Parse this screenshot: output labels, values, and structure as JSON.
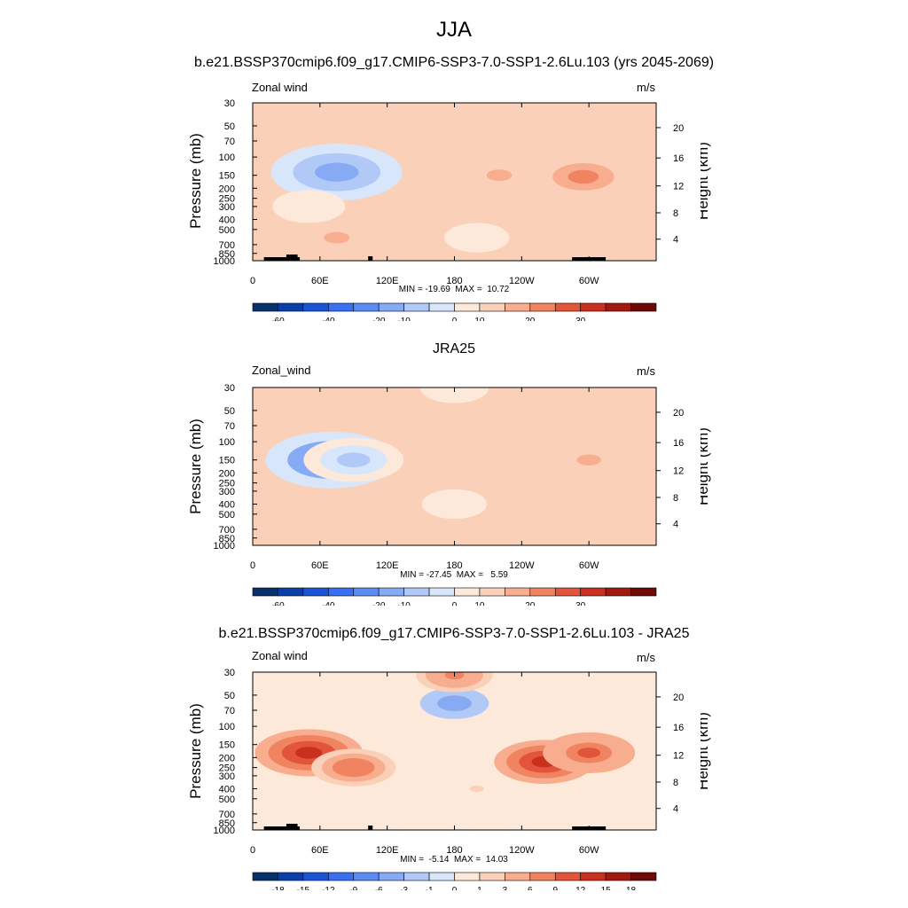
{
  "figure": {
    "title": "JJA"
  },
  "chart_data": [
    {
      "type": "heatmap",
      "title": "b.e21.BSSP370cmip6.f09_g17.CMIP6-SSP3-7.0-SSP1-2.6Lu.103 (yrs 2045-2069)",
      "variable": "Zonal wind",
      "units": "m/s",
      "ylabel": "Pressure (mb)",
      "ylabel_right": "Height (km)",
      "x_ticks": [
        "0",
        "60E",
        "120E",
        "180",
        "120W",
        "60W"
      ],
      "y_ticks": [
        "30",
        "50",
        "70",
        "100",
        "150",
        "200",
        "250",
        "300",
        "400",
        "500",
        "700",
        "850",
        "1000"
      ],
      "y_ticks_right": [
        "20",
        "16",
        "12",
        "8",
        "4"
      ],
      "min": -19.69,
      "max": 10.72,
      "min_max_text": "MIN = -19.69  MAX =  10.72",
      "colorbar_labels": [
        "-60",
        "-40",
        "-20",
        "-10",
        "0",
        "10",
        "20",
        "30"
      ],
      "features": [
        {
          "lon": 75,
          "p": 140,
          "value": -20
        },
        {
          "lon": 50,
          "p": 300,
          "value": -5
        },
        {
          "lon": 220,
          "p": 150,
          "value": 6
        },
        {
          "lon": 295,
          "p": 155,
          "value": 10
        },
        {
          "lon": 75,
          "p": 600,
          "value": 6
        },
        {
          "lon": 200,
          "p": 600,
          "value": -3
        }
      ]
    },
    {
      "type": "heatmap",
      "title": "JRA25",
      "variable": "Zonal_wind",
      "units": "m/s",
      "ylabel": "Pressure (mb)",
      "ylabel_right": "Height (km)",
      "x_ticks": [
        "0",
        "60E",
        "120E",
        "180",
        "120W",
        "60W"
      ],
      "y_ticks": [
        "30",
        "50",
        "70",
        "100",
        "150",
        "200",
        "250",
        "300",
        "400",
        "500",
        "700",
        "850",
        "1000"
      ],
      "y_ticks_right": [
        "20",
        "16",
        "12",
        "8",
        "4"
      ],
      "min": -27.45,
      "max": 5.59,
      "min_max_text": "MIN = -27.45  MAX =   5.59",
      "colorbar_labels": [
        "-60",
        "-40",
        "-20",
        "-10",
        "0",
        "10",
        "20",
        "30"
      ],
      "features": [
        {
          "lon": 70,
          "p": 150,
          "value": -27
        },
        {
          "lon": 90,
          "p": 150,
          "value": -12
        },
        {
          "lon": 220,
          "p": 90,
          "value": 4
        },
        {
          "lon": 300,
          "p": 150,
          "value": 5
        },
        {
          "lon": 60,
          "p": 500,
          "value": 3
        },
        {
          "lon": 180,
          "p": 400,
          "value": -3
        },
        {
          "lon": 180,
          "p": 30,
          "value": -4
        }
      ]
    },
    {
      "type": "heatmap",
      "title": "b.e21.BSSP370cmip6.f09_g17.CMIP6-SSP3-7.0-SSP1-2.6Lu.103 - JRA25",
      "variable": "Zonal wind",
      "units": "m/s",
      "ylabel": "Pressure (mb)",
      "ylabel_right": "Height (km)",
      "x_ticks": [
        "0",
        "60E",
        "120E",
        "180",
        "120W",
        "60W"
      ],
      "y_ticks": [
        "30",
        "50",
        "70",
        "100",
        "150",
        "200",
        "250",
        "300",
        "400",
        "500",
        "700",
        "850",
        "1000"
      ],
      "y_ticks_right": [
        "20",
        "16",
        "12",
        "8",
        "4"
      ],
      "min": -5.14,
      "max": 14.03,
      "min_max_text": "MIN =  -5.14  MAX =  14.03",
      "colorbar_labels": [
        "-18",
        "-15",
        "-12",
        "-9",
        "-6",
        "-3",
        "-1",
        "0",
        "1",
        "3",
        "6",
        "9",
        "12",
        "15",
        "18"
      ],
      "features": [
        {
          "lon": 50,
          "p": 180,
          "value": 14
        },
        {
          "lon": 90,
          "p": 250,
          "value": 8
        },
        {
          "lon": 260,
          "p": 220,
          "value": 12
        },
        {
          "lon": 300,
          "p": 180,
          "value": 10
        },
        {
          "lon": 180,
          "p": 60,
          "value": -4
        },
        {
          "lon": 180,
          "p": 32,
          "value": 6
        },
        {
          "lon": 200,
          "p": 400,
          "value": 1
        }
      ]
    }
  ],
  "colors": {
    "scale_wide": [
      "#08306b",
      "#0b3fa8",
      "#1a55d6",
      "#3a6ff0",
      "#5b8cf2",
      "#86aaf4",
      "#b0c9f6",
      "#d7e6fb",
      "#fde9d9",
      "#fbd0b8",
      "#f7ad8e",
      "#f08461",
      "#e2553a",
      "#c9301f",
      "#a01a10",
      "#6d0a05"
    ],
    "scale_diff": [
      "#08306b",
      "#0b3fa8",
      "#1a55d6",
      "#3a6ff0",
      "#5b8cf2",
      "#86aaf4",
      "#b0c9f6",
      "#d7e6fb",
      "#fde9d9",
      "#fbd0b8",
      "#f7ad8e",
      "#f08461",
      "#e2553a",
      "#c9301f",
      "#a01a10",
      "#6d0a05"
    ],
    "topography": "#000000"
  }
}
